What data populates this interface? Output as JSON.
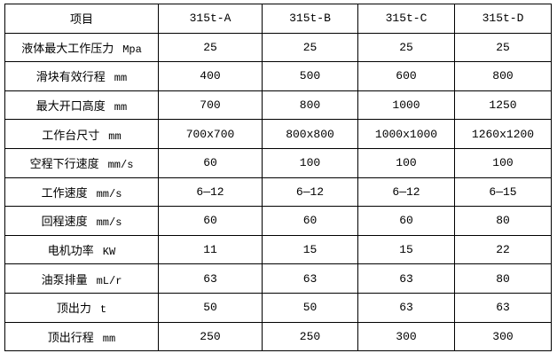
{
  "header": {
    "item": "项目",
    "models": [
      "315t-A",
      "315t-B",
      "315t-C",
      "315t-D"
    ]
  },
  "rows": [
    {
      "label": "液体最大工作压力",
      "unit": "Mpa",
      "values": [
        "25",
        "25",
        "25",
        "25"
      ]
    },
    {
      "label": "滑块有效行程",
      "unit": "mm",
      "values": [
        "400",
        "500",
        "600",
        "800"
      ]
    },
    {
      "label": "最大开口高度",
      "unit": "mm",
      "values": [
        "700",
        "800",
        "1000",
        "1250"
      ]
    },
    {
      "label": "工作台尺寸",
      "unit": "mm",
      "values": [
        "700x700",
        "800x800",
        "1000x1000",
        "1260x1200"
      ]
    },
    {
      "label": "空程下行速度",
      "unit": "mm/s",
      "values": [
        "60",
        "100",
        "100",
        "100"
      ]
    },
    {
      "label": "工作速度",
      "unit": "mm/s",
      "values": [
        "6—12",
        "6—12",
        "6—12",
        "6—15"
      ]
    },
    {
      "label": "回程速度",
      "unit": "mm/s",
      "values": [
        "60",
        "60",
        "60",
        "80"
      ]
    },
    {
      "label": "电机功率",
      "unit": "KW",
      "values": [
        "11",
        "15",
        "15",
        "22"
      ]
    },
    {
      "label": "油泵排量",
      "unit": "mL/r",
      "values": [
        "63",
        "63",
        "63",
        "80"
      ]
    },
    {
      "label": "顶出力",
      "unit": "t",
      "values": [
        "50",
        "50",
        "63",
        "63"
      ]
    },
    {
      "label": "顶出行程",
      "unit": "mm",
      "values": [
        "250",
        "250",
        "300",
        "300"
      ]
    }
  ]
}
